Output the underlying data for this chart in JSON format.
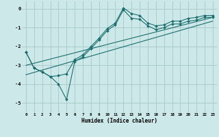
{
  "xlabel": "Humidex (Indice chaleur)",
  "bg_color": "#cce8e8",
  "grid_color": "#aacccc",
  "line_color": "#1a6e6e",
  "xlim": [
    -0.5,
    23.5
  ],
  "ylim": [
    -5.5,
    0.4
  ],
  "x_ticks": [
    0,
    1,
    2,
    3,
    4,
    5,
    6,
    7,
    8,
    9,
    10,
    11,
    12,
    13,
    14,
    15,
    16,
    17,
    18,
    19,
    20,
    21,
    22,
    23
  ],
  "y_ticks": [
    0,
    -1,
    -2,
    -3,
    -4,
    -5
  ],
  "line1_x": [
    0,
    1,
    2,
    3,
    4,
    5,
    6,
    7,
    8,
    9,
    10,
    11,
    12,
    13,
    14,
    15,
    16,
    17,
    18,
    19,
    20,
    21,
    22,
    23
  ],
  "line1_y": [
    -2.3,
    -3.15,
    -3.35,
    -3.6,
    -4.0,
    -4.82,
    -2.8,
    -2.55,
    -2.1,
    -1.65,
    -1.15,
    -0.85,
    -0.05,
    -0.5,
    -0.55,
    -0.9,
    -1.1,
    -1.0,
    -0.8,
    -0.8,
    -0.65,
    -0.6,
    -0.45,
    -0.45
  ],
  "line2_x": [
    0,
    1,
    2,
    3,
    4,
    5,
    6,
    7,
    8,
    9,
    10,
    11,
    12,
    13,
    14,
    15,
    16,
    17,
    18,
    19,
    20,
    21,
    22,
    23
  ],
  "line2_y": [
    -2.3,
    -3.15,
    -3.35,
    -3.6,
    -3.55,
    -3.45,
    -2.7,
    -2.45,
    -2.0,
    -1.55,
    -1.05,
    -0.75,
    0.05,
    -0.25,
    -0.35,
    -0.75,
    -0.9,
    -0.85,
    -0.65,
    -0.65,
    -0.5,
    -0.45,
    -0.35,
    -0.35
  ],
  "line3_x": [
    0,
    23
  ],
  "line3_y": [
    -3.0,
    -0.45
  ],
  "line4_x": [
    0,
    23
  ],
  "line4_y": [
    -3.5,
    -0.65
  ]
}
